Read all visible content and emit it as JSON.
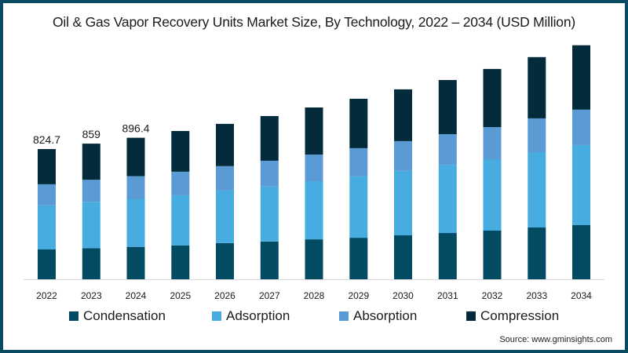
{
  "chart_data": {
    "type": "bar",
    "stacked": true,
    "title": "Oil & Gas Vapor Recovery Units Market Size, By Technology, 2022 – 2034 (USD Million)",
    "xlabel": "",
    "ylabel": "",
    "categories": [
      "2022",
      "2023",
      "2024",
      "2025",
      "2026",
      "2027",
      "2028",
      "2029",
      "2030",
      "2031",
      "2032",
      "2033",
      "2034"
    ],
    "series": [
      {
        "name": "Condensation",
        "color": "#034a63",
        "values": [
          188.9,
          196,
          205,
          214,
          229,
          239,
          253,
          263,
          278,
          293,
          308,
          328,
          343
        ]
      },
      {
        "name": "Adsorption",
        "color": "#47ace0",
        "values": [
          278.3,
          295,
          304,
          318,
          333,
          348,
          368,
          388,
          408,
          432,
          452,
          477,
          507
        ]
      },
      {
        "name": "Absorption",
        "color": "#5b9bd5",
        "values": [
          134.2,
          139,
          144,
          149,
          154,
          164,
          169,
          179,
          189,
          194,
          204,
          214,
          224
        ]
      },
      {
        "name": "Compression",
        "color": "#032b3c",
        "values": [
          223.3,
          229,
          243.4,
          258,
          268,
          283,
          298,
          313,
          328,
          343,
          368,
          388,
          408
        ]
      }
    ],
    "data_labels": [
      {
        "category": "2022",
        "text": "824.7"
      },
      {
        "category": "2023",
        "text": "859"
      },
      {
        "category": "2024",
        "text": "896.4"
      }
    ],
    "ylim": [
      0,
      1500
    ],
    "grid": false,
    "legend_position": "bottom",
    "source": "Source: www.gminsights.com"
  }
}
